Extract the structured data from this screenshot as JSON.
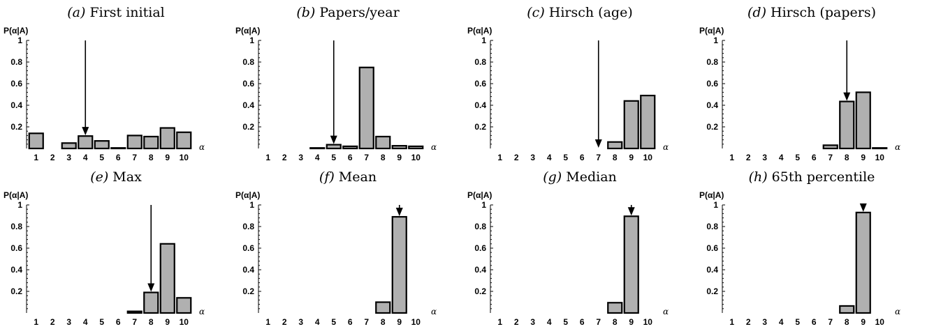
{
  "chart_data": [
    {
      "type": "bar",
      "title_tag": "(a)",
      "title": "First initial",
      "ylabel": "P(α|A)",
      "xlabel": "α",
      "categories": [
        "1",
        "2",
        "3",
        "4",
        "5",
        "6",
        "7",
        "8",
        "9",
        "10"
      ],
      "values": [
        0.14,
        0.0,
        0.05,
        0.115,
        0.07,
        0.005,
        0.12,
        0.11,
        0.19,
        0.15
      ],
      "arrow_at": "4",
      "arrow_tip_value": 0.115,
      "ylim": [
        0,
        1
      ],
      "yticks": [
        "0.2",
        "0.4",
        "0.6",
        "0.8",
        "1"
      ]
    },
    {
      "type": "bar",
      "title_tag": "(b)",
      "title": "Papers/year",
      "ylabel": "P(α|A)",
      "xlabel": "α",
      "categories": [
        "1",
        "2",
        "3",
        "4",
        "5",
        "6",
        "7",
        "8",
        "9",
        "10"
      ],
      "values": [
        0.0,
        0.0,
        0.0,
        0.005,
        0.035,
        0.02,
        0.75,
        0.11,
        0.025,
        0.02
      ],
      "arrow_at": "5",
      "arrow_tip_value": 0.035,
      "ylim": [
        0,
        1
      ],
      "yticks": [
        "0.2",
        "0.4",
        "0.6",
        "0.8",
        "1"
      ]
    },
    {
      "type": "bar",
      "title_tag": "(c)",
      "title": "Hirsch (age)",
      "ylabel": "P(α|A)",
      "xlabel": "α",
      "categories": [
        "1",
        "2",
        "3",
        "4",
        "5",
        "6",
        "7",
        "8",
        "9",
        "10"
      ],
      "values": [
        0.0,
        0.0,
        0.0,
        0.0,
        0.0,
        0.0,
        0.0,
        0.06,
        0.44,
        0.49
      ],
      "arrow_at": "7",
      "arrow_tip_value": 0.0,
      "ylim": [
        0,
        1
      ],
      "yticks": [
        "0.2",
        "0.4",
        "0.6",
        "0.8",
        "1"
      ]
    },
    {
      "type": "bar",
      "title_tag": "(d)",
      "title": "Hirsch (papers)",
      "ylabel": "P(α|A)",
      "xlabel": "α",
      "categories": [
        "1",
        "2",
        "3",
        "4",
        "5",
        "6",
        "7",
        "8",
        "9",
        "10"
      ],
      "values": [
        0.0,
        0.0,
        0.0,
        0.0,
        0.0,
        0.0,
        0.03,
        0.435,
        0.52,
        0.005
      ],
      "arrow_at": "8",
      "arrow_tip_value": 0.435,
      "ylim": [
        0,
        1
      ],
      "yticks": [
        "0.2",
        "0.4",
        "0.6",
        "0.8",
        "1"
      ]
    },
    {
      "type": "bar",
      "title_tag": "(e)",
      "title": "Max",
      "ylabel": "P(α|A)",
      "xlabel": "α",
      "categories": [
        "1",
        "2",
        "3",
        "4",
        "5",
        "6",
        "7",
        "8",
        "9",
        "10"
      ],
      "values": [
        0.0,
        0.0,
        0.0,
        0.0,
        0.0,
        0.0,
        0.015,
        0.19,
        0.64,
        0.14
      ],
      "arrow_at": "8",
      "arrow_tip_value": 0.19,
      "ylim": [
        0,
        1
      ],
      "yticks": [
        "0.2",
        "0.4",
        "0.6",
        "0.8",
        "1"
      ]
    },
    {
      "type": "bar",
      "title_tag": "(f)",
      "title": "Mean",
      "ylabel": "P(α|A)",
      "xlabel": "α",
      "categories": [
        "1",
        "2",
        "3",
        "4",
        "5",
        "6",
        "7",
        "8",
        "9",
        "10"
      ],
      "values": [
        0.0,
        0.0,
        0.0,
        0.0,
        0.0,
        0.0,
        0.0,
        0.1,
        0.89,
        0.0
      ],
      "arrow_at": "9",
      "arrow_tip_value": 0.89,
      "ylim": [
        0,
        1
      ],
      "yticks": [
        "0.2",
        "0.4",
        "0.6",
        "0.8",
        "1"
      ]
    },
    {
      "type": "bar",
      "title_tag": "(g)",
      "title": "Median",
      "ylabel": "P(α|A)",
      "xlabel": "α",
      "categories": [
        "1",
        "2",
        "3",
        "4",
        "5",
        "6",
        "7",
        "8",
        "9",
        "10"
      ],
      "values": [
        0.0,
        0.0,
        0.0,
        0.0,
        0.0,
        0.0,
        0.0,
        0.095,
        0.895,
        0.0
      ],
      "arrow_at": "9",
      "arrow_tip_value": 0.895,
      "ylim": [
        0,
        1
      ],
      "yticks": [
        "0.2",
        "0.4",
        "0.6",
        "0.8",
        "1"
      ]
    },
    {
      "type": "bar",
      "title_tag": "(h)",
      "title": "65th percentile",
      "ylabel": "P(α|A)",
      "xlabel": "α",
      "categories": [
        "1",
        "2",
        "3",
        "4",
        "5",
        "6",
        "7",
        "8",
        "9",
        "10"
      ],
      "values": [
        0.0,
        0.0,
        0.0,
        0.0,
        0.0,
        0.0,
        0.0,
        0.065,
        0.93,
        0.0
      ],
      "arrow_at": "9",
      "arrow_tip_value": 0.93,
      "ylim": [
        0,
        1
      ],
      "yticks": [
        "0.2",
        "0.4",
        "0.6",
        "0.8",
        "1"
      ]
    }
  ],
  "colors": {
    "bar_fill": "#b0b0b0",
    "bar_stroke": "#000000",
    "arrow": "#000000"
  }
}
